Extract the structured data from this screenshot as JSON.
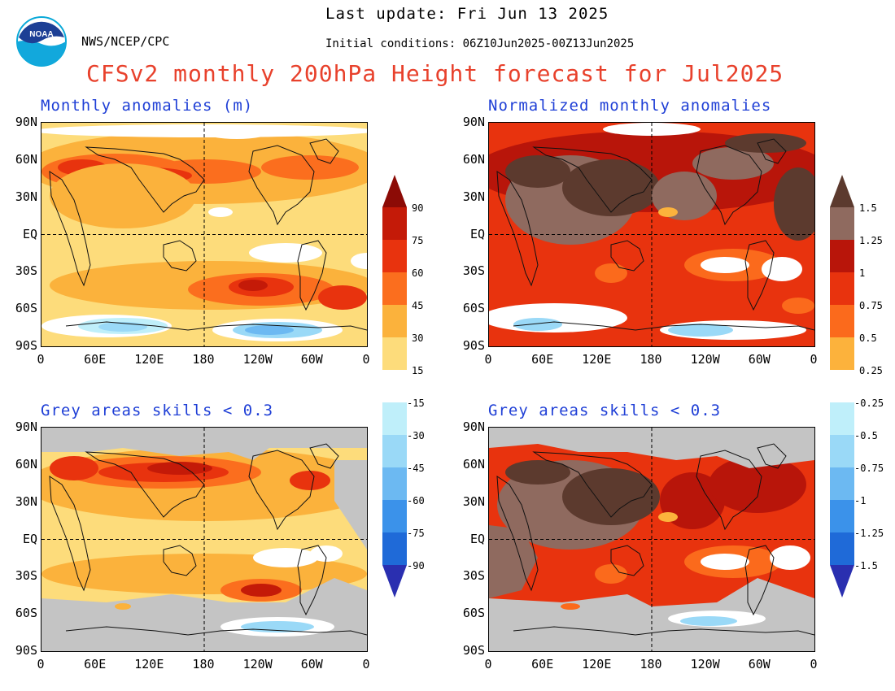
{
  "header": {
    "last_update": "Last update: Fri Jun 13 2025",
    "initial_conditions": "Initial conditions: 06Z10Jun2025-00Z13Jun2025",
    "org": "NWS/NCEP/CPC",
    "title": "CFSv2 monthly 200hPa Height forecast for Jul2025",
    "logo_text": "NOAA"
  },
  "panels": {
    "top_left": {
      "title": "Monthly anomalies (m)"
    },
    "top_right": {
      "title": "Normalized monthly anomalies"
    },
    "bottom_left": {
      "title": "Grey areas skills < 0.3"
    },
    "bottom_right": {
      "title": "Grey areas skills < 0.3"
    }
  },
  "axes": {
    "lat_labels": [
      "90N",
      "60N",
      "30N",
      "EQ",
      "30S",
      "60S",
      "90S"
    ],
    "lon_labels": [
      "0",
      "60E",
      "120E",
      "180",
      "120W",
      "60W",
      "0"
    ]
  },
  "colorbar_left": {
    "pos_labels": [
      "90",
      "75",
      "60",
      "45",
      "30",
      "15"
    ],
    "neg_labels": [
      "-15",
      "-30",
      "-45",
      "-60",
      "-75",
      "-90"
    ]
  },
  "colorbar_right": {
    "pos_labels": [
      "1.5",
      "1.25",
      "1",
      "0.75",
      "0.5",
      "0.25"
    ],
    "neg_labels": [
      "-0.25",
      "-0.5",
      "-0.75",
      "-1",
      "-1.25",
      "-1.5"
    ]
  },
  "colors": {
    "pos": [
      "#fddc7b",
      "#fbb23c",
      "#fb6e1e",
      "#e8330e",
      "#c41a08",
      "#8c0b06"
    ],
    "norm_pos": [
      "#fcb23c",
      "#fb6a1c",
      "#e8330e",
      "#b8150a",
      "#8f6a5f",
      "#5c3a2e"
    ],
    "neg": [
      "#bfeffa",
      "#9ad9f7",
      "#6cb9f2",
      "#3b92ea",
      "#1f6ad8",
      "#2a2fb0"
    ],
    "grey": "#c4c4c4",
    "title_red": "#e8412c",
    "title_blue": "#1f3fd6"
  }
}
